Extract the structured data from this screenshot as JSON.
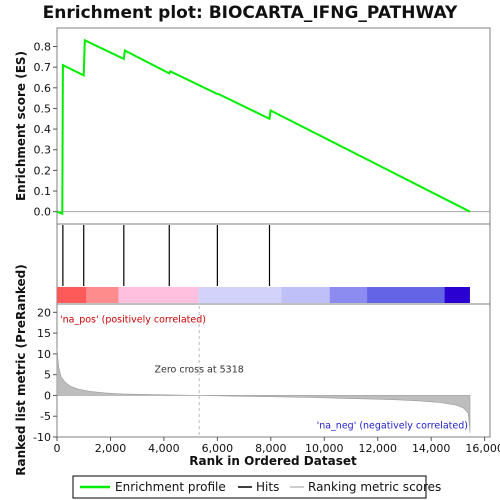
{
  "chart_data": {
    "title": "Enrichment plot: BIOCARTA_IFNG_PATHWAY",
    "es_panel": {
      "type": "line",
      "ylabel": "Enrichment score (ES)",
      "ylim": [
        -0.05,
        0.88
      ],
      "yticks": [
        0.0,
        0.1,
        0.2,
        0.3,
        0.4,
        0.5,
        0.6,
        0.7,
        0.8
      ],
      "ytick_labels": [
        "0.0",
        "0.1",
        "0.2",
        "0.3",
        "0.4",
        "0.5",
        "0.6",
        "0.7",
        "0.8"
      ],
      "series": [
        {
          "name": "Enrichment profile",
          "color": "#00ee00",
          "x": [
            0,
            200,
            220,
            1000,
            1040,
            2500,
            2540,
            4200,
            4240,
            6000,
            6040,
            7950,
            7990,
            15450
          ],
          "y": [
            0.0,
            -0.01,
            0.71,
            0.66,
            0.83,
            0.74,
            0.78,
            0.67,
            0.68,
            0.57,
            0.57,
            0.45,
            0.49,
            0.0
          ]
        }
      ]
    },
    "hits_panel": {
      "hit_positions": [
        220,
        1000,
        2500,
        4200,
        6000,
        7950
      ],
      "color_bar": [
        {
          "start": 0,
          "end": 1100,
          "color": "#ff5a5a"
        },
        {
          "start": 1100,
          "end": 2300,
          "color": "#ff8c8c"
        },
        {
          "start": 2300,
          "end": 5300,
          "color": "#ffc0e0"
        },
        {
          "start": 5300,
          "end": 8400,
          "color": "#d2d2fa"
        },
        {
          "start": 8400,
          "end": 10200,
          "color": "#c0c0f8"
        },
        {
          "start": 10200,
          "end": 11600,
          "color": "#8c8cf0"
        },
        {
          "start": 11600,
          "end": 14500,
          "color": "#6464e6"
        },
        {
          "start": 14500,
          "end": 15450,
          "color": "#2a00d2"
        }
      ]
    },
    "ranked_panel": {
      "type": "area",
      "ylabel": "Ranked list metric (PreRanked)",
      "ylim": [
        -10,
        22
      ],
      "yticks": [
        -10,
        -5,
        0,
        5,
        10,
        15,
        20
      ],
      "ytick_labels": [
        "-10",
        "-5",
        "0",
        "5",
        "10",
        "15",
        "20"
      ],
      "x": [
        0,
        60,
        150,
        300,
        500,
        800,
        1200,
        1800,
        2500,
        3500,
        4500,
        5318,
        6500,
        8000,
        9500,
        11000,
        12500,
        13500,
        14300,
        14900,
        15200,
        15380,
        15420,
        15450
      ],
      "y": [
        11.5,
        7,
        4.5,
        3.2,
        2.2,
        1.5,
        1.0,
        0.6,
        0.35,
        0.2,
        0.1,
        0.0,
        -0.15,
        -0.3,
        -0.5,
        -0.75,
        -1.0,
        -1.3,
        -1.7,
        -2.3,
        -3.0,
        -4.2,
        -6.5,
        -9.0
      ],
      "zero_cross": 5318,
      "annotations": {
        "pos": "'na_pos' (positively correlated)",
        "neg": "'na_neg' (negatively correlated)",
        "zero": "Zero cross at 5318"
      }
    },
    "xaxis": {
      "label": "Rank in Ordered Dataset",
      "xlim": [
        0,
        16200
      ],
      "ticks": [
        0,
        2000,
        4000,
        6000,
        8000,
        10000,
        12000,
        14000,
        16000
      ],
      "tick_labels": [
        "0",
        "2,000",
        "4,000",
        "6,000",
        "8,000",
        "10,000",
        "12,000",
        "14,000",
        "16,000"
      ]
    },
    "legend": {
      "placement": "bottom",
      "items": [
        "Enrichment profile",
        "Hits",
        "Ranking metric scores"
      ],
      "colors": [
        "#00ee00",
        "#000000",
        "#bdbdbd"
      ]
    }
  }
}
